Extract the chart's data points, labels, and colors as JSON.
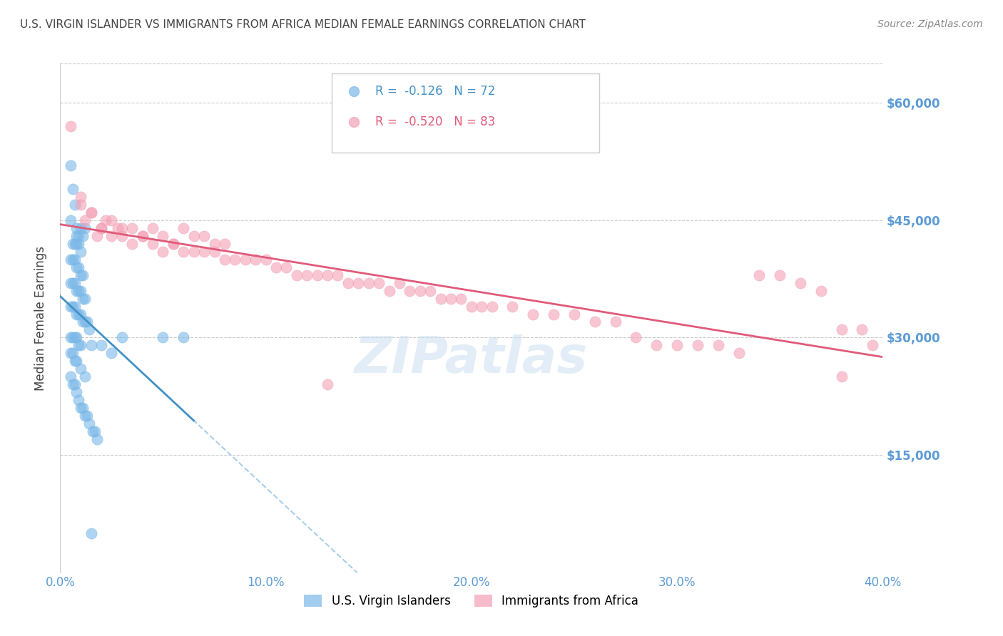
{
  "title": "U.S. VIRGIN ISLANDER VS IMMIGRANTS FROM AFRICA MEDIAN FEMALE EARNINGS CORRELATION CHART",
  "source": "Source: ZipAtlas.com",
  "ylabel": "Median Female Earnings",
  "xlim": [
    0.0,
    0.4
  ],
  "ylim": [
    0,
    65000
  ],
  "xtick_labels": [
    "0.0%",
    "10.0%",
    "20.0%",
    "30.0%",
    "40.0%"
  ],
  "xtick_positions": [
    0.0,
    0.1,
    0.2,
    0.3,
    0.4
  ],
  "ytick_labels": [
    "$15,000",
    "$30,000",
    "$45,000",
    "$60,000"
  ],
  "ytick_positions": [
    15000,
    30000,
    45000,
    60000
  ],
  "watermark": "ZIPatlas",
  "blue_color": "#7bb8e8",
  "pink_color": "#f4a0b5",
  "blue_line_color": "#4292c6",
  "pink_line_color": "#e05a7a",
  "blue_dashed_color": "#a8cfe8",
  "title_color": "#444444",
  "ytick_color": "#5b9bd5",
  "xtick_color": "#5b9bd5",
  "blue_scatter_x": [
    0.005,
    0.006,
    0.007,
    0.005,
    0.008,
    0.01,
    0.012,
    0.008,
    0.009,
    0.011,
    0.006,
    0.007,
    0.008,
    0.009,
    0.01,
    0.005,
    0.006,
    0.007,
    0.008,
    0.009,
    0.01,
    0.011,
    0.005,
    0.006,
    0.007,
    0.008,
    0.009,
    0.01,
    0.011,
    0.012,
    0.005,
    0.006,
    0.007,
    0.008,
    0.009,
    0.01,
    0.011,
    0.012,
    0.013,
    0.014,
    0.005,
    0.006,
    0.007,
    0.008,
    0.009,
    0.01,
    0.015,
    0.02,
    0.025,
    0.03,
    0.005,
    0.006,
    0.007,
    0.008,
    0.01,
    0.012,
    0.05,
    0.06,
    0.005,
    0.006,
    0.007,
    0.008,
    0.009,
    0.01,
    0.011,
    0.012,
    0.013,
    0.014,
    0.015,
    0.016,
    0.017,
    0.018
  ],
  "blue_scatter_y": [
    52000,
    49000,
    47000,
    45000,
    44000,
    44000,
    44000,
    43000,
    43000,
    43000,
    42000,
    42000,
    42000,
    42000,
    41000,
    40000,
    40000,
    40000,
    39000,
    39000,
    38000,
    38000,
    37000,
    37000,
    37000,
    36000,
    36000,
    36000,
    35000,
    35000,
    34000,
    34000,
    34000,
    33000,
    33000,
    33000,
    32000,
    32000,
    32000,
    31000,
    30000,
    30000,
    30000,
    30000,
    29000,
    29000,
    29000,
    29000,
    28000,
    30000,
    28000,
    28000,
    27000,
    27000,
    26000,
    25000,
    30000,
    30000,
    25000,
    24000,
    24000,
    23000,
    22000,
    21000,
    21000,
    20000,
    20000,
    19000,
    5000,
    18000,
    18000,
    17000
  ],
  "pink_scatter_x": [
    0.005,
    0.01,
    0.012,
    0.015,
    0.018,
    0.02,
    0.022,
    0.025,
    0.028,
    0.03,
    0.035,
    0.04,
    0.045,
    0.05,
    0.055,
    0.06,
    0.065,
    0.07,
    0.075,
    0.08,
    0.01,
    0.015,
    0.02,
    0.025,
    0.03,
    0.035,
    0.04,
    0.045,
    0.05,
    0.055,
    0.06,
    0.065,
    0.07,
    0.075,
    0.08,
    0.085,
    0.09,
    0.095,
    0.1,
    0.105,
    0.11,
    0.115,
    0.12,
    0.125,
    0.13,
    0.135,
    0.14,
    0.145,
    0.15,
    0.155,
    0.16,
    0.165,
    0.17,
    0.175,
    0.18,
    0.185,
    0.19,
    0.195,
    0.2,
    0.205,
    0.21,
    0.22,
    0.23,
    0.24,
    0.25,
    0.26,
    0.27,
    0.28,
    0.29,
    0.3,
    0.31,
    0.32,
    0.33,
    0.34,
    0.35,
    0.36,
    0.37,
    0.38,
    0.39,
    0.395,
    0.13,
    0.38
  ],
  "pink_scatter_y": [
    57000,
    48000,
    45000,
    46000,
    43000,
    44000,
    45000,
    45000,
    44000,
    44000,
    44000,
    43000,
    44000,
    43000,
    42000,
    44000,
    43000,
    43000,
    42000,
    42000,
    47000,
    46000,
    44000,
    43000,
    43000,
    42000,
    43000,
    42000,
    41000,
    42000,
    41000,
    41000,
    41000,
    41000,
    40000,
    40000,
    40000,
    40000,
    40000,
    39000,
    39000,
    38000,
    38000,
    38000,
    38000,
    38000,
    37000,
    37000,
    37000,
    37000,
    36000,
    37000,
    36000,
    36000,
    36000,
    35000,
    35000,
    35000,
    34000,
    34000,
    34000,
    34000,
    33000,
    33000,
    33000,
    32000,
    32000,
    30000,
    29000,
    29000,
    29000,
    29000,
    28000,
    38000,
    38000,
    37000,
    36000,
    31000,
    31000,
    29000,
    24000,
    25000
  ]
}
